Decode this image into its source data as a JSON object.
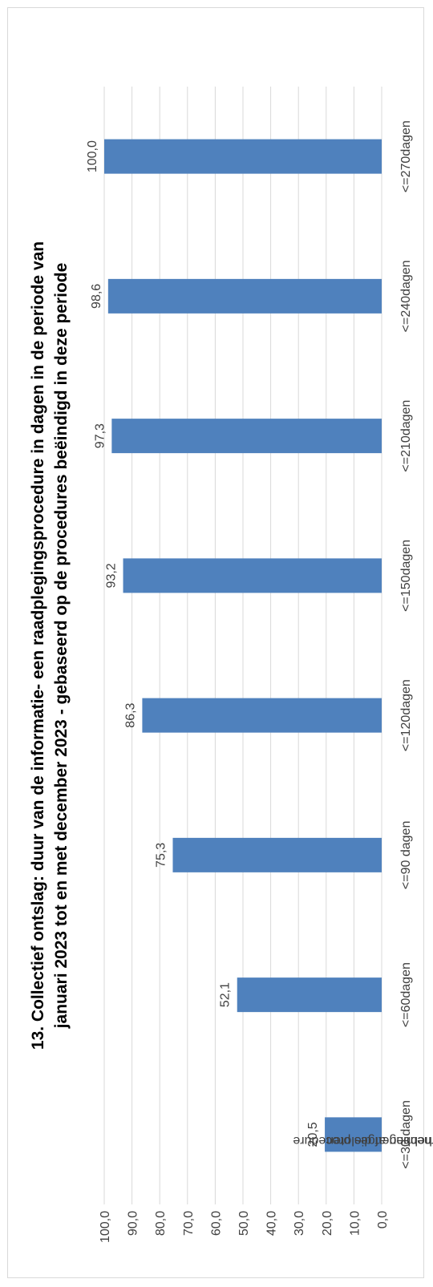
{
  "chart_data": {
    "type": "bar",
    "title_line1": "13. Collectief ontslag: duur van de informatie- een raadplegingsprocedure in dagen in de periode van",
    "title_line2": "januari 2023 tot en met december 2023 - gebaseerd op de procedures beëindigd in deze periode",
    "ylabel_line1": "% aan ondernemingen die procedure",
    "ylabel_line2": "hebben afgesloten",
    "categories": [
      "<=30 dagen",
      "<=60dagen",
      "<=90 dagen",
      "<=120dagen",
      "<=150dagen",
      "<=210dagen",
      "<=240dagen",
      "<=270dagen"
    ],
    "values": [
      20.5,
      52.1,
      75.3,
      86.3,
      93.2,
      97.3,
      98.6,
      100.0
    ],
    "value_labels": [
      "20,5",
      "52,1",
      "75,3",
      "86,3",
      "93,2",
      "97,3",
      "98,6",
      "100,0"
    ],
    "yticks": [
      "0,0",
      "10,0",
      "20,0",
      "30,0",
      "40,0",
      "50,0",
      "60,0",
      "70,0",
      "80,0",
      "90,0",
      "100,0"
    ],
    "ylim": [
      0,
      100
    ],
    "grid": true,
    "bar_color": "#4f81bd",
    "grid_color": "#d9d9d9"
  }
}
